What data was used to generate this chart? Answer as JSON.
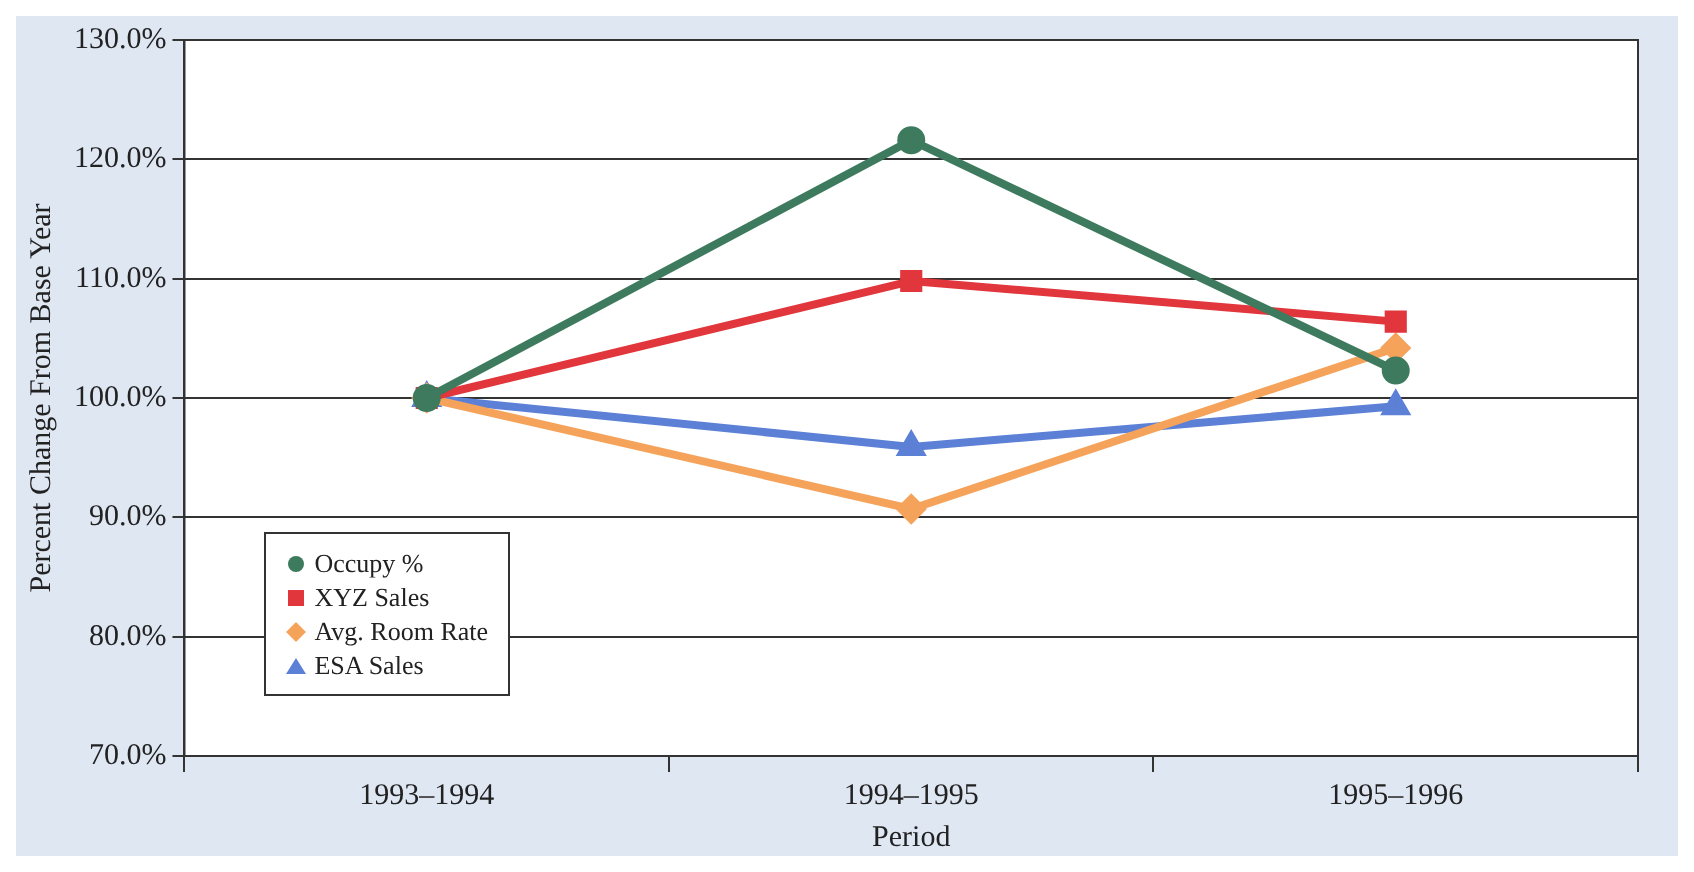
{
  "chart_data": {
    "type": "line",
    "xlabel": "Period",
    "ylabel": "Percent Change From Base Year",
    "categories": [
      "1993–1994",
      "1994–1995",
      "1995–1996"
    ],
    "series": [
      {
        "name": "Occupy %",
        "color": "#3d7a5e",
        "marker": "circle",
        "values": [
          100,
          121.6,
          102.3
        ]
      },
      {
        "name": "XYZ Sales",
        "color": "#e0363c",
        "marker": "square",
        "values": [
          100,
          109.8,
          106.4
        ]
      },
      {
        "name": "Avg. Room Rate",
        "color": "#f5a35a",
        "marker": "diamond",
        "values": [
          100,
          90.7,
          104.2
        ]
      },
      {
        "name": "ESA Sales",
        "color": "#5b80d6",
        "marker": "triangle",
        "values": [
          100,
          95.9,
          99.3
        ]
      }
    ],
    "ylim": [
      70,
      130
    ],
    "yticks": [
      {
        "value": 70,
        "label": "70.0%"
      },
      {
        "value": 80,
        "label": "80.0%"
      },
      {
        "value": 90,
        "label": "90.0%"
      },
      {
        "value": 100,
        "label": "100.0%"
      },
      {
        "value": 110,
        "label": "110.0%"
      },
      {
        "value": 120,
        "label": "120.0%"
      },
      {
        "value": 130,
        "label": "130.0%"
      }
    ],
    "grid": "y",
    "legend": "bottom left",
    "line_style": "solid"
  }
}
